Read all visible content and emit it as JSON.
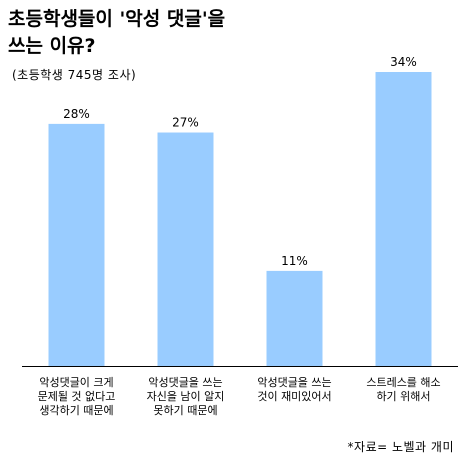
{
  "header": {
    "title_line1": "초등학생들이 '악성 댓글'을",
    "title_line2": "쓰는 이유?",
    "subtitle": "(초등학생 745명 조사)"
  },
  "footer": {
    "source": "*자료= 노벨과 개미"
  },
  "chart_data": {
    "type": "bar",
    "categories": [
      [
        "악성댓글이 크게",
        "문제될 것 없다고",
        "생각하기 때문에"
      ],
      [
        "악성댓글을 쓰는",
        "자신을 남이 알지",
        "못하기 때문에"
      ],
      [
        "악성댓글을 쓰는",
        "것이 재미있어서"
      ],
      [
        "스트레스를 해소",
        "하기 위해서"
      ]
    ],
    "values": [
      28,
      27,
      11,
      34
    ],
    "value_labels": [
      "28%",
      "27%",
      "11%",
      "34%"
    ],
    "unit": "%",
    "ylim": [
      0,
      34
    ],
    "title": "초등학생들이 '악성 댓글'을 쓰는 이유?",
    "xlabel": "",
    "ylabel": "",
    "grid": false,
    "bar_color": "#99ccff",
    "axis_color": "#000000"
  }
}
